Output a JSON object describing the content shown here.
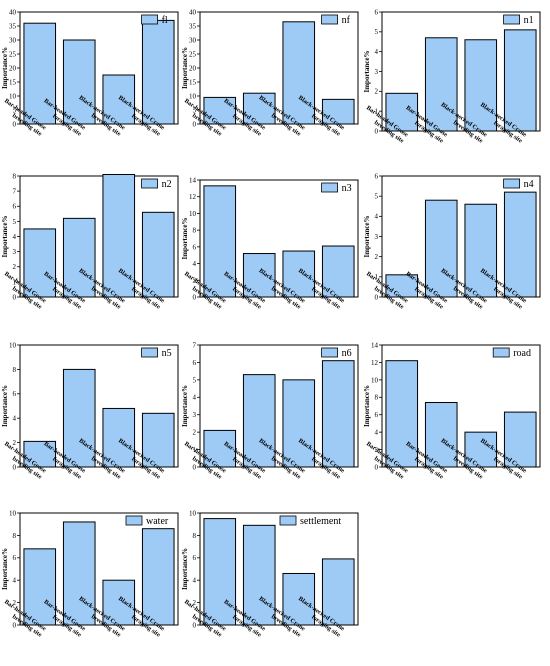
{
  "chart_data": [
    {
      "type": "bar",
      "legend": "fl",
      "color": "#9ecbf5",
      "ylabel": "Importance%",
      "ylim": [
        0,
        40
      ],
      "yticks": [
        0,
        5,
        10,
        15,
        20,
        25,
        30,
        35,
        40
      ],
      "categories": [
        "Bar-headed Goose breeding site",
        "Bar-headed Goose foraging site",
        "Black-necked Crane breeding site",
        "Black-necked Crane foraging site"
      ],
      "values": [
        36,
        30,
        17.5,
        37
      ]
    },
    {
      "type": "bar",
      "legend": "nf",
      "color": "#9ecbf5",
      "ylabel": "Importance%",
      "ylim": [
        0,
        40
      ],
      "yticks": [
        0,
        5,
        10,
        15,
        20,
        25,
        30,
        35,
        40
      ],
      "categories": [
        "Bar-headed Goose breeding site",
        "Bar-headed Goose foraging site",
        "Black-necked Crane breeding site",
        "Black-necked Crane foraging site"
      ],
      "values": [
        9.5,
        11,
        36.5,
        8.8
      ]
    },
    {
      "type": "bar",
      "legend": "n1",
      "color": "#9ecbf5",
      "ylabel": "Importance%",
      "ylim": [
        0,
        6
      ],
      "yticks": [
        0,
        1,
        2,
        3,
        4,
        5,
        6
      ],
      "categories": [
        "Bar-headed Goose breeding site",
        "Bar-headed Goose foraging site",
        "Black-necked Crane breeding site",
        "Black-necked Crane foraging site"
      ],
      "values": [
        1.9,
        4.7,
        4.6,
        5.1
      ]
    },
    {
      "type": "bar",
      "legend": "n2",
      "color": "#9ecbf5",
      "ylabel": "Importance%",
      "ylim": [
        0,
        8
      ],
      "yticks": [
        0,
        1,
        2,
        3,
        4,
        5,
        6,
        7,
        8
      ],
      "categories": [
        "Bar-headed Goose breeding site",
        "Bar-headed Goose foraging site",
        "Black-necked Crane breeding site",
        "Black-necked Crane foraging site"
      ],
      "values": [
        4.5,
        5.2,
        8.1,
        5.6
      ]
    },
    {
      "type": "bar",
      "legend": "n3",
      "color": "#9ecbf5",
      "ylabel": "Importance%",
      "ylim": [
        0,
        14
      ],
      "yticks": [
        0,
        2,
        4,
        6,
        8,
        10,
        12,
        14
      ],
      "categories": [
        "Bar-headed Goose breeding site",
        "Bar-headed Goose foraging site",
        "Black-necked Crane breeding site",
        "Black-necked Crane foraging site"
      ],
      "values": [
        13.3,
        5.2,
        5.5,
        6.1
      ]
    },
    {
      "type": "bar",
      "legend": "n4",
      "color": "#9ecbf5",
      "ylabel": "Importance%",
      "ylim": [
        0,
        6
      ],
      "yticks": [
        0,
        1,
        2,
        3,
        4,
        5,
        6
      ],
      "categories": [
        "Bar-headed Goose breeding site",
        "Bar-headed Goose foraging site",
        "Black-necked Crane breeding site",
        "Black-necked Crane foraging site"
      ],
      "values": [
        1.1,
        4.8,
        4.6,
        5.2
      ]
    },
    {
      "type": "bar",
      "legend": "n5",
      "color": "#9ecbf5",
      "ylabel": "Importance%",
      "ylim": [
        0,
        10
      ],
      "yticks": [
        0,
        2,
        4,
        6,
        8,
        10
      ],
      "categories": [
        "Bar-headed Goose breeding site",
        "Bar-headed Goose foraging site",
        "Black-necked Crane breeding site",
        "Black-necked Crane foraging site"
      ],
      "values": [
        2.1,
        8.0,
        4.8,
        4.4
      ]
    },
    {
      "type": "bar",
      "legend": "n6",
      "color": "#9ecbf5",
      "ylabel": "Importance%",
      "ylim": [
        0,
        7
      ],
      "yticks": [
        0,
        1,
        2,
        3,
        4,
        5,
        6,
        7
      ],
      "categories": [
        "Bar-headed Goose breeding site",
        "Bar-headed Goose foraging site",
        "Black-necked Crane breeding site",
        "Black-necked Crane foraging site"
      ],
      "values": [
        2.1,
        5.3,
        5.0,
        6.1
      ]
    },
    {
      "type": "bar",
      "legend": "road",
      "color": "#9ecbf5",
      "ylabel": "Importance%",
      "ylim": [
        0,
        14
      ],
      "yticks": [
        0,
        2,
        4,
        6,
        8,
        10,
        12,
        14
      ],
      "categories": [
        "Bar-headed Goose breeding site",
        "Bar-headed Goose foraging site",
        "Black-necked Crane breeding site",
        "Black-necked Crane foraging site"
      ],
      "values": [
        12.2,
        7.4,
        4.0,
        6.3
      ]
    },
    {
      "type": "bar",
      "legend": "water",
      "color": "#9ecbf5",
      "ylabel": "Importance%",
      "ylim": [
        0,
        10
      ],
      "yticks": [
        0,
        2,
        4,
        6,
        8,
        10
      ],
      "categories": [
        "Bar-headed Goose breeding site",
        "Bar-headed Goose foraging site",
        "Black-necked Crane breeding site",
        "Black-necked Crane foraging site"
      ],
      "values": [
        6.8,
        9.2,
        4.0,
        8.6
      ]
    },
    {
      "type": "bar",
      "legend": "settlement",
      "color": "#9ecbf5",
      "ylabel": "Importance%",
      "ylim": [
        0,
        10
      ],
      "yticks": [
        0,
        2,
        4,
        6,
        8,
        10
      ],
      "categories": [
        "Bar-headed Goose breeding site",
        "Bar-headed Goose foraging site",
        "Black-necked Crane breeding site",
        "Black-necked Crane foraging site"
      ],
      "values": [
        9.5,
        8.9,
        4.6,
        5.9
      ]
    }
  ]
}
